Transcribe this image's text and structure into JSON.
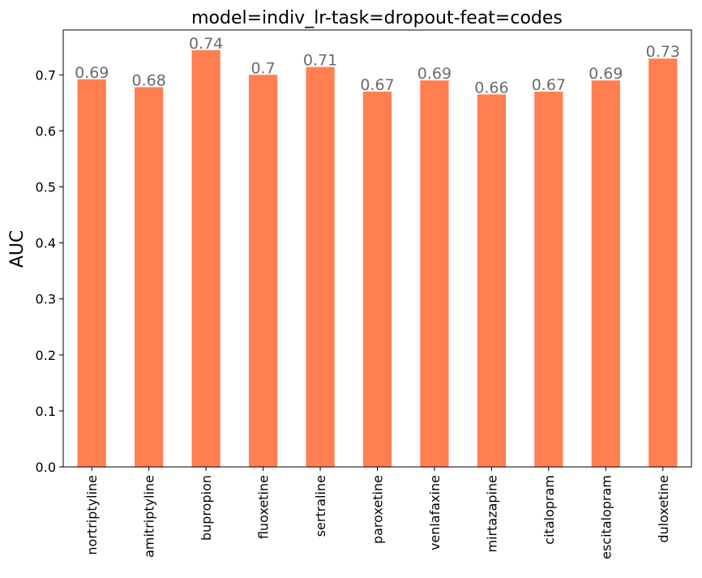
{
  "chart_data": {
    "type": "bar",
    "title": "model=indiv_lr-task=dropout-feat=codes",
    "xlabel": "",
    "ylabel": "AUC",
    "categories": [
      "nortriptyline",
      "amitriptyline",
      "bupropion",
      "fluoxetine",
      "sertraline",
      "paroxetine",
      "venlafaxine",
      "mirtazapine",
      "citalopram",
      "escitalopram",
      "duloxetine"
    ],
    "values": [
      0.692,
      0.678,
      0.744,
      0.7,
      0.714,
      0.67,
      0.69,
      0.665,
      0.67,
      0.69,
      0.729
    ],
    "value_labels": [
      "0.69",
      "0.68",
      "0.74",
      "0.7",
      "0.71",
      "0.67",
      "0.69",
      "0.66",
      "0.67",
      "0.69",
      "0.73"
    ],
    "ylim": [
      0,
      0.78
    ],
    "yticks": [
      0.0,
      0.1,
      0.2,
      0.3,
      0.4,
      0.5,
      0.6,
      0.7
    ],
    "ytick_labels": [
      "0.0",
      "0.1",
      "0.2",
      "0.3",
      "0.4",
      "0.5",
      "0.6",
      "0.7"
    ],
    "bar_color": "#ff7f50",
    "data_label_color": "#6b6b6b",
    "grid": false,
    "legend": "none"
  }
}
